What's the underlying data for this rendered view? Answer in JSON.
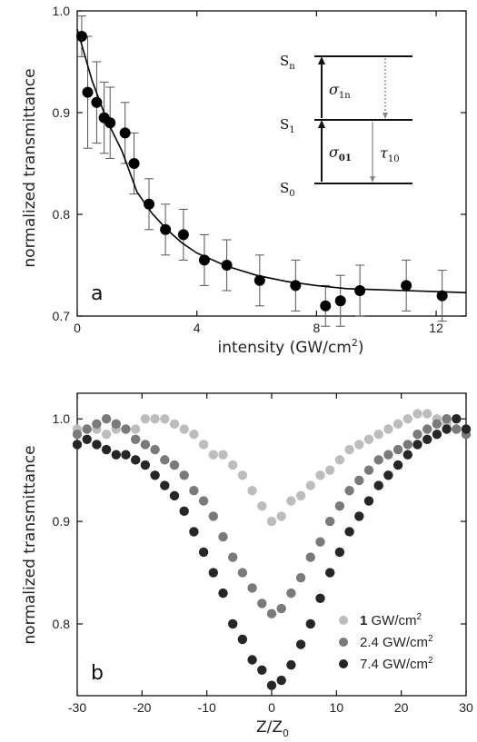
{
  "chart_data": [
    {
      "type": "scatter",
      "panel_label": "a",
      "xlabel": "intensity (GW/cm",
      "xlabel_sup": "2",
      "xlabel_end": ")",
      "ylabel": "normalized transmittance",
      "xlim": [
        0,
        13
      ],
      "ylim": [
        0.7,
        1.0
      ],
      "xticks": [
        0,
        4,
        8,
        12
      ],
      "yticks": [
        0.7,
        0.8,
        0.9,
        1.0
      ],
      "xtick_labels": [
        "0",
        "4",
        "8",
        "12"
      ],
      "ytick_labels": [
        "0.7",
        "0.8",
        "0.9",
        "1.0"
      ],
      "series": [
        {
          "marker": "filled-circle",
          "color": "#000000",
          "x": [
            0.15,
            0.35,
            0.65,
            0.9,
            1.1,
            1.6,
            1.9,
            2.4,
            2.95,
            3.55,
            4.25,
            5.0,
            6.1,
            7.3,
            8.3,
            8.8,
            9.45,
            11.0,
            12.2
          ],
          "y": [
            0.975,
            0.92,
            0.91,
            0.895,
            0.89,
            0.88,
            0.85,
            0.81,
            0.785,
            0.78,
            0.755,
            0.75,
            0.735,
            0.73,
            0.71,
            0.715,
            0.725,
            0.73,
            0.72
          ],
          "yerr": [
            0.02,
            0.055,
            0.04,
            0.035,
            0.035,
            0.03,
            0.03,
            0.025,
            0.025,
            0.025,
            0.025,
            0.025,
            0.025,
            0.025,
            0.02,
            0.025,
            0.025,
            0.025,
            0.025
          ]
        },
        {
          "type": "line",
          "color": "#000000",
          "fit": "exponential decay",
          "x": [
            0,
            0.5,
            1,
            1.5,
            2,
            2.5,
            3,
            3.5,
            4,
            5,
            6,
            7,
            8,
            9,
            10,
            11,
            12,
            13
          ],
          "y": [
            0.982,
            0.931,
            0.892,
            0.862,
            0.822,
            0.801,
            0.785,
            0.772,
            0.762,
            0.749,
            0.74,
            0.734,
            0.73,
            0.727,
            0.726,
            0.725,
            0.724,
            0.723
          ]
        }
      ],
      "inset": {
        "levels": [
          {
            "label": "S",
            "sub": "n"
          },
          {
            "label": "S",
            "sub": "1"
          },
          {
            "label": "S",
            "sub": "0"
          }
        ],
        "symbols": [
          {
            "main": "σ",
            "sub": "1n"
          },
          {
            "main": "σ",
            "sub": "01"
          },
          {
            "main": "τ",
            "sub": "10"
          }
        ]
      }
    },
    {
      "type": "scatter",
      "panel_label": "b",
      "xlabel": "Z/Z",
      "xlabel_sub": "0",
      "ylabel": "normalized transmittance",
      "xlim": [
        -30,
        30
      ],
      "ylim": [
        0.73,
        1.025
      ],
      "xticks": [
        -30,
        -20,
        -10,
        0,
        10,
        20,
        30
      ],
      "yticks": [
        0.8,
        0.9,
        1.0
      ],
      "xtick_labels": [
        "-30",
        "-20",
        "-10",
        "0",
        "10",
        "20",
        "30"
      ],
      "ytick_labels": [
        "0.8",
        "0.9",
        "1.0"
      ],
      "series": [
        {
          "name_bold": "1",
          "name": " GW/cm",
          "name_sup": "2",
          "color": "#bdbdbd",
          "x": [
            -30,
            -28.5,
            -27,
            -25.5,
            -24,
            -22.5,
            -21,
            -19.5,
            -18,
            -16.5,
            -15,
            -13.5,
            -12,
            -10.5,
            -9,
            -7.5,
            -6,
            -4.5,
            -3,
            -1.5,
            0,
            1.5,
            3,
            4.5,
            6,
            7.5,
            9,
            10.5,
            12,
            13.5,
            15,
            16.5,
            18,
            19.5,
            21,
            22.5,
            24,
            25.5,
            27,
            28.5,
            30
          ],
          "y": [
            0.99,
            0.99,
            0.99,
            0.985,
            0.99,
            0.99,
            0.99,
            1.0,
            1.0,
            1.0,
            0.995,
            0.99,
            0.985,
            0.975,
            0.965,
            0.965,
            0.955,
            0.945,
            0.93,
            0.915,
            0.9,
            0.905,
            0.92,
            0.925,
            0.935,
            0.945,
            0.95,
            0.96,
            0.97,
            0.975,
            0.98,
            0.985,
            0.99,
            0.995,
            1.0,
            1.005,
            1.005,
            1.0,
            0.995,
            0.99,
            0.99
          ]
        },
        {
          "name": "2.4 GW/cm",
          "name_sup": "2",
          "color": "#7a7a7a",
          "x": [
            -30,
            -28.5,
            -27,
            -25.5,
            -24,
            -22.5,
            -21,
            -19.5,
            -18,
            -16.5,
            -15,
            -13.5,
            -12,
            -10.5,
            -9,
            -7.5,
            -6,
            -4.5,
            -3,
            -1.5,
            0,
            1.5,
            3,
            4.5,
            6,
            7.5,
            9,
            10.5,
            12,
            13.5,
            15,
            16.5,
            18,
            19.5,
            21,
            22.5,
            24,
            25.5,
            27,
            28.5,
            30
          ],
          "y": [
            0.985,
            0.99,
            0.995,
            1.0,
            0.995,
            0.99,
            0.98,
            0.975,
            0.97,
            0.96,
            0.955,
            0.945,
            0.93,
            0.92,
            0.905,
            0.885,
            0.865,
            0.85,
            0.835,
            0.82,
            0.81,
            0.815,
            0.83,
            0.845,
            0.865,
            0.88,
            0.9,
            0.915,
            0.93,
            0.94,
            0.95,
            0.96,
            0.965,
            0.97,
            0.975,
            0.985,
            0.99,
            0.995,
            1.0,
            0.99,
            0.985
          ]
        },
        {
          "name": "7.4 GW/cm",
          "name_sup": "2",
          "color": "#262626",
          "x": [
            -30,
            -28.5,
            -27,
            -25.5,
            -24,
            -22.5,
            -21,
            -19.5,
            -18,
            -16.5,
            -15,
            -13.5,
            -12,
            -10.5,
            -9,
            -7.5,
            -6,
            -4.5,
            -3,
            -1.5,
            0,
            1.5,
            3,
            4.5,
            6,
            7.5,
            9,
            10.5,
            12,
            13.5,
            15,
            16.5,
            18,
            19.5,
            21,
            22.5,
            24,
            25.5,
            27,
            28.5,
            30
          ],
          "y": [
            0.975,
            0.98,
            0.975,
            0.97,
            0.965,
            0.965,
            0.96,
            0.955,
            0.945,
            0.935,
            0.925,
            0.91,
            0.89,
            0.87,
            0.85,
            0.83,
            0.8,
            0.785,
            0.765,
            0.755,
            0.74,
            0.745,
            0.76,
            0.78,
            0.8,
            0.825,
            0.85,
            0.87,
            0.89,
            0.905,
            0.92,
            0.935,
            0.945,
            0.955,
            0.965,
            0.975,
            0.98,
            0.985,
            0.99,
            1.0,
            0.99
          ]
        }
      ],
      "legend_position": "lower-right"
    }
  ]
}
